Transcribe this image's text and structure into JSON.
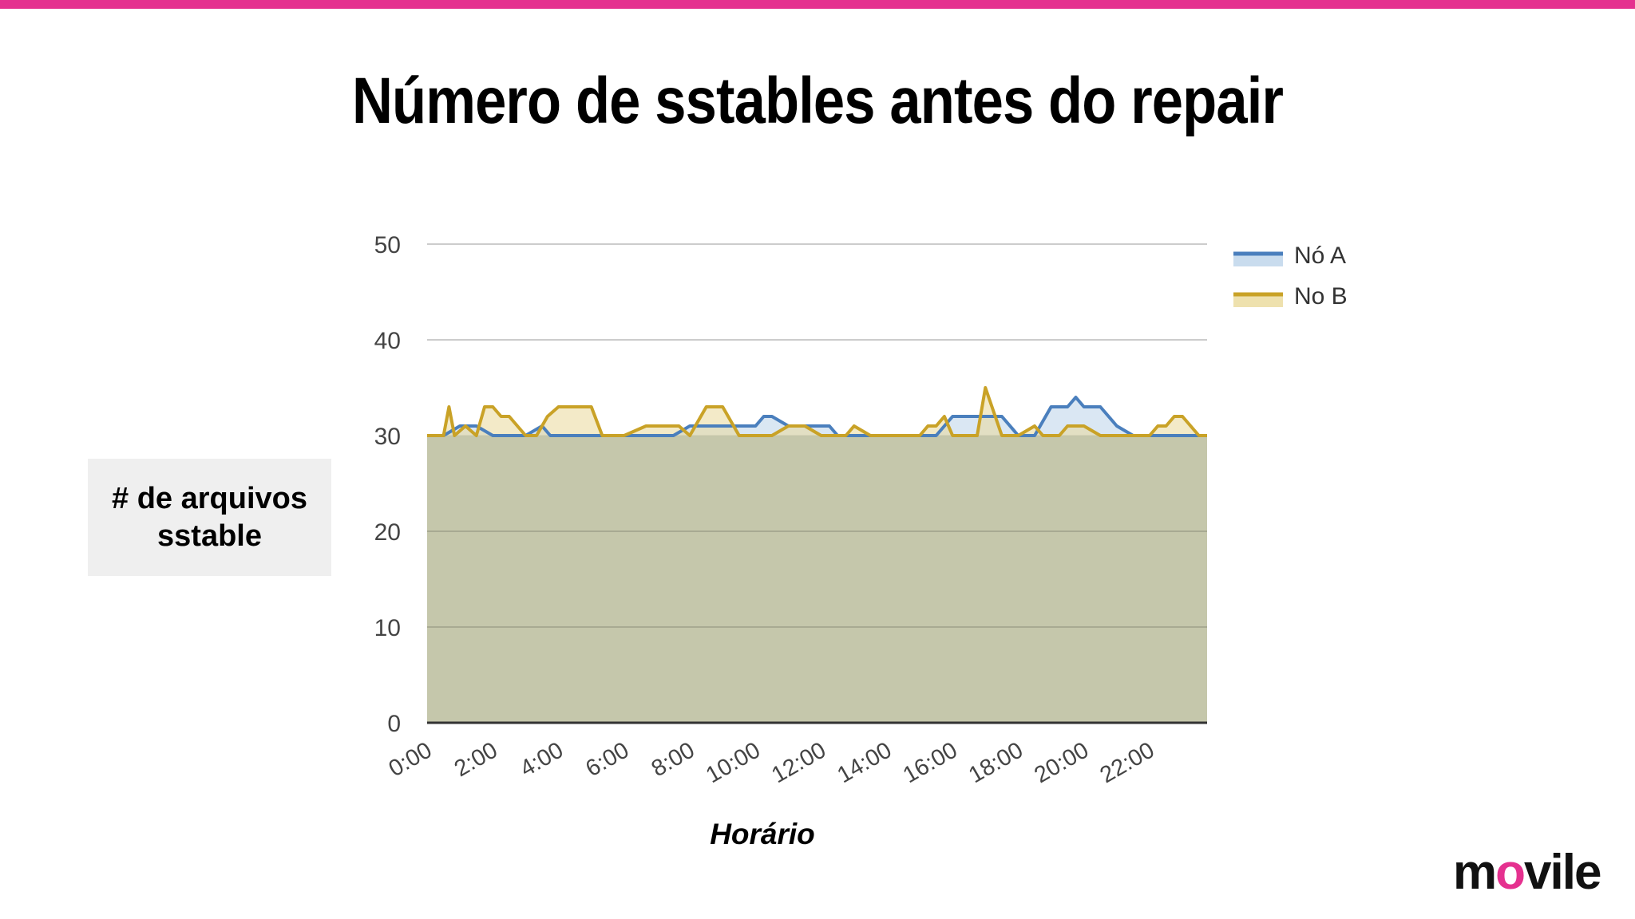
{
  "slide": {
    "title": "Número de sstables antes do repair",
    "ylabel": "# de arquivos sstable",
    "xlabel": "Horário",
    "logo": {
      "pre": "m",
      "accent": "o",
      "post": "vile"
    },
    "accent_color": "#e5318f"
  },
  "chart_data": {
    "type": "area",
    "title": "",
    "xlabel": "Horário",
    "ylabel": "# de arquivos sstable",
    "ylim": [
      0,
      50
    ],
    "yticks": [
      0,
      10,
      20,
      30,
      40,
      50
    ],
    "xlim": [
      "0:00",
      "23:45"
    ],
    "x_tick_labels": [
      "0:00",
      "2:00",
      "4:00",
      "6:00",
      "8:00",
      "10:00",
      "12:00",
      "14:00",
      "16:00",
      "18:00",
      "20:00",
      "22:00"
    ],
    "grid": true,
    "legend_position": "right",
    "series": [
      {
        "name": "Nó A",
        "color": "#4a7fbd",
        "fill": "#bcd3ea",
        "x": [
          "0:00",
          "0:30",
          "1:00",
          "1:30",
          "2:00",
          "2:30",
          "3:00",
          "3:30",
          "3:45",
          "4:00",
          "4:30",
          "5:00",
          "5:30",
          "6:00",
          "6:30",
          "7:00",
          "7:30",
          "8:00",
          "8:30",
          "9:00",
          "9:30",
          "10:00",
          "10:15",
          "10:30",
          "11:00",
          "11:30",
          "12:00",
          "12:15",
          "12:30",
          "13:00",
          "13:30",
          "14:00",
          "14:30",
          "15:00",
          "15:30",
          "16:00",
          "16:30",
          "17:00",
          "17:30",
          "18:00",
          "18:30",
          "19:00",
          "19:30",
          "19:45",
          "20:00",
          "20:30",
          "21:00",
          "21:30",
          "22:00",
          "22:30",
          "23:00",
          "23:30",
          "23:45"
        ],
        "y": [
          30,
          30,
          31,
          31,
          30,
          30,
          30,
          31,
          30,
          30,
          30,
          30,
          30,
          30,
          30,
          30,
          30,
          31,
          31,
          31,
          31,
          31,
          32,
          32,
          31,
          31,
          31,
          31,
          30,
          30,
          30,
          30,
          30,
          30,
          30,
          32,
          32,
          32,
          32,
          30,
          30,
          33,
          33,
          34,
          33,
          33,
          31,
          30,
          30,
          30,
          30,
          30,
          30
        ]
      },
      {
        "name": "No B",
        "color": "#c9a227",
        "fill": "#ead99a",
        "x": [
          "0:00",
          "0:30",
          "0:40",
          "0:50",
          "1:10",
          "1:30",
          "1:45",
          "2:00",
          "2:15",
          "2:30",
          "3:00",
          "3:20",
          "3:40",
          "4:00",
          "4:20",
          "4:40",
          "5:00",
          "5:20",
          "5:40",
          "6:00",
          "6:40",
          "7:00",
          "7:40",
          "8:00",
          "8:30",
          "8:45",
          "9:00",
          "9:30",
          "10:00",
          "10:15",
          "10:30",
          "11:00",
          "11:30",
          "12:00",
          "12:30",
          "12:45",
          "13:00",
          "13:30",
          "14:00",
          "14:30",
          "15:00",
          "15:15",
          "15:30",
          "15:45",
          "16:00",
          "16:30",
          "16:45",
          "17:00",
          "17:30",
          "17:45",
          "18:00",
          "18:30",
          "18:45",
          "19:00",
          "19:15",
          "19:30",
          "20:00",
          "20:30",
          "21:00",
          "21:30",
          "22:00",
          "22:15",
          "22:30",
          "22:45",
          "23:00",
          "23:30",
          "23:45"
        ],
        "y": [
          30,
          30,
          33,
          30,
          31,
          30,
          33,
          33,
          32,
          32,
          30,
          30,
          32,
          33,
          33,
          33,
          33,
          30,
          30,
          30,
          31,
          31,
          31,
          30,
          33,
          33,
          33,
          30,
          30,
          30,
          30,
          31,
          31,
          30,
          30,
          30,
          31,
          30,
          30,
          30,
          30,
          31,
          31,
          32,
          30,
          30,
          30,
          35,
          30,
          30,
          30,
          31,
          30,
          30,
          30,
          31,
          31,
          30,
          30,
          30,
          30,
          31,
          31,
          32,
          32,
          30,
          30
        ]
      }
    ]
  }
}
